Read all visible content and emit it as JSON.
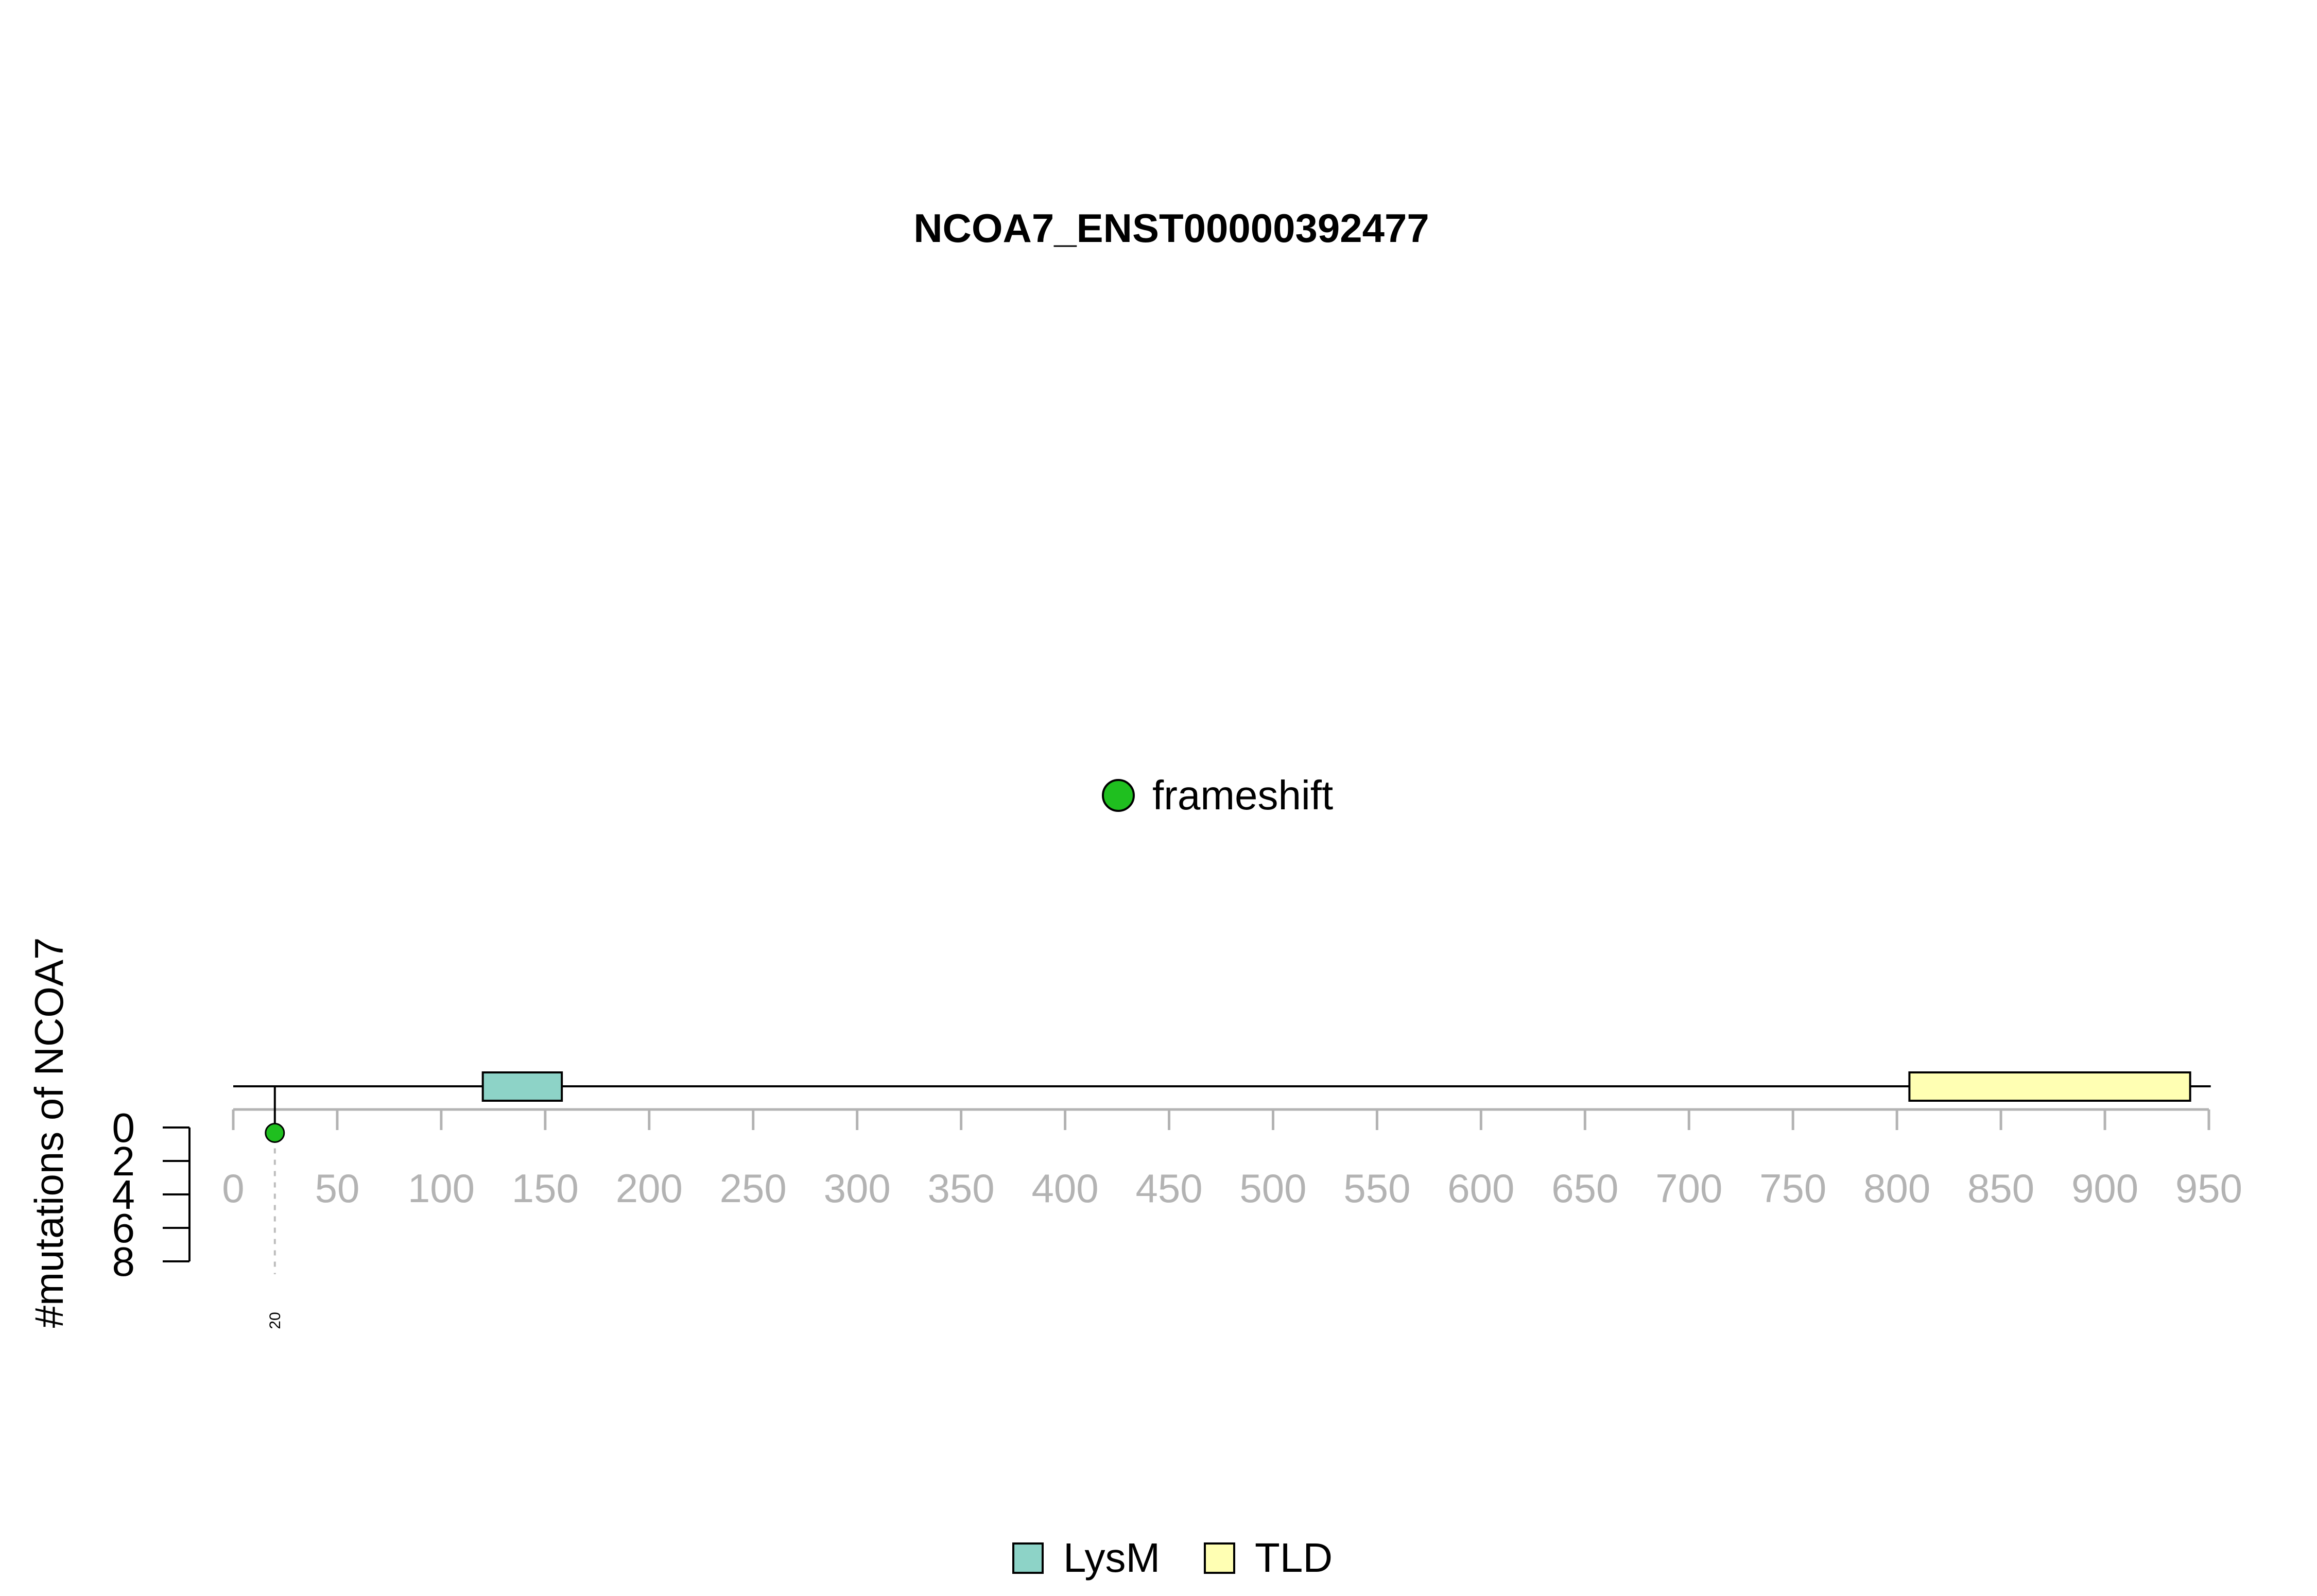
{
  "chart_data": {
    "type": "lollipop",
    "title": "NCOA7_ENST00000392477",
    "ylabel": "#mutations of NCOA7",
    "protein_length": 942,
    "x_ticks": [
      0,
      50,
      100,
      150,
      200,
      250,
      300,
      350,
      400,
      450,
      500,
      550,
      600,
      650,
      700,
      750,
      800,
      850,
      900,
      950
    ],
    "y_ticks": [
      0,
      2,
      4,
      6,
      8
    ],
    "xlim": [
      0,
      950
    ],
    "ylim": [
      0,
      8
    ],
    "y_direction": "downward",
    "domains": [
      {
        "name": "LysM",
        "start": 120,
        "end": 158,
        "color": "#8dd3c7"
      },
      {
        "name": "TLD",
        "start": 806,
        "end": 941,
        "color": "#ffffb3"
      }
    ],
    "mutations": [
      {
        "position": 20,
        "count": 1,
        "type": "frameshift",
        "label": "20"
      }
    ],
    "mutation_legend": [
      {
        "label": "frameshift",
        "color": "#1fbf1f"
      }
    ],
    "domain_legend": [
      {
        "label": "LysM",
        "color": "#8dd3c7"
      },
      {
        "label": "TLD",
        "color": "#ffffb3"
      }
    ],
    "axis_color": "#b3b3b3"
  }
}
